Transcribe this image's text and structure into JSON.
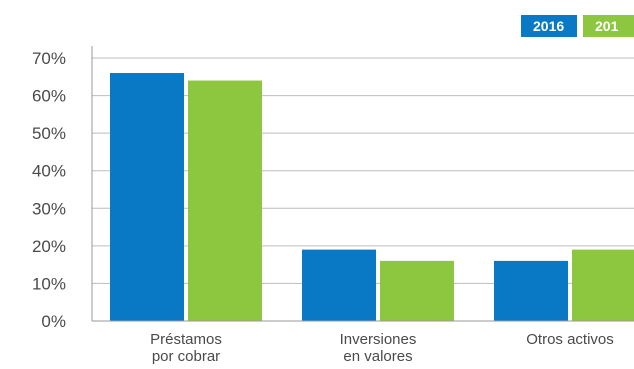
{
  "colors": {
    "s2016": "#0a79c5",
    "s2017": "#8dc63f",
    "grid": "#bdbdbd",
    "axis": "#9a9a9a"
  },
  "legend": {
    "items": [
      "2016",
      "201"
    ],
    "placement": "top-right"
  },
  "chart_data": {
    "type": "bar",
    "title": "",
    "xlabel": "",
    "ylabel": "",
    "ylim": [
      0,
      70
    ],
    "grid": true,
    "y_ticks": [
      "0%",
      "10%",
      "20%",
      "30%",
      "40%",
      "50%",
      "60%",
      "70%"
    ],
    "categories": [
      [
        "Préstamos",
        "por cobrar"
      ],
      [
        "Inversiones",
        "en valores"
      ],
      [
        "Otros activos"
      ]
    ],
    "series": [
      {
        "name": "2016",
        "values": [
          66,
          19,
          16
        ]
      },
      {
        "name": "201",
        "values": [
          64,
          16,
          19
        ]
      }
    ]
  }
}
